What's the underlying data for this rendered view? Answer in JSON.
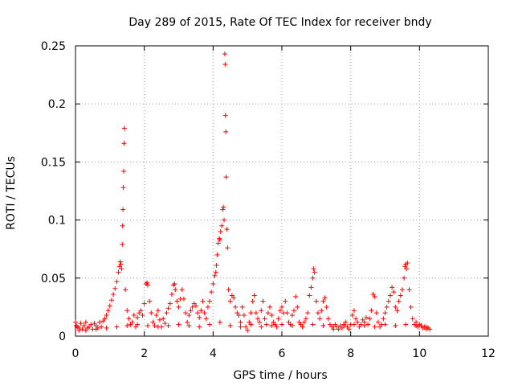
{
  "chart_data": {
    "type": "scatter",
    "title": "Day 289 of 2015, Rate Of TEC Index for receiver bndy",
    "xlabel": "GPS time / hours",
    "ylabel": "ROTI / TECUs",
    "xlim": [
      0,
      12
    ],
    "ylim": [
      0,
      0.25
    ],
    "grid": true,
    "marker": "+",
    "series_color": "#ff0000",
    "x_ticks": [
      0,
      2,
      4,
      6,
      8,
      10,
      12
    ],
    "y_ticks": [
      0,
      0.05,
      0.1,
      0.15,
      0.2,
      0.25
    ],
    "x_tick_labels": [
      "0",
      "2",
      "4",
      "6",
      "8",
      "10",
      "12"
    ],
    "y_tick_labels": [
      "0",
      "0.05",
      "0.1",
      "0.15",
      "0.2",
      "0.25"
    ],
    "series": [
      {
        "name": "ROTI",
        "points": [
          [
            0.0,
            0.012
          ],
          [
            0.02,
            0.009
          ],
          [
            0.05,
            0.008
          ],
          [
            0.1,
            0.007
          ],
          [
            0.15,
            0.011
          ],
          [
            0.2,
            0.006
          ],
          [
            0.25,
            0.009
          ],
          [
            0.3,
            0.012
          ],
          [
            0.35,
            0.007
          ],
          [
            0.4,
            0.008
          ],
          [
            0.45,
            0.01
          ],
          [
            0.5,
            0.006
          ],
          [
            0.55,
            0.011
          ],
          [
            0.6,
            0.009
          ],
          [
            0.65,
            0.007
          ],
          [
            0.7,
            0.012
          ],
          [
            0.75,
            0.008
          ],
          [
            0.8,
            0.013
          ],
          [
            0.85,
            0.015
          ],
          [
            0.9,
            0.018
          ],
          [
            0.95,
            0.022
          ],
          [
            1.0,
            0.026
          ],
          [
            1.05,
            0.031
          ],
          [
            1.1,
            0.036
          ],
          [
            1.15,
            0.041
          ],
          [
            1.2,
            0.047
          ],
          [
            1.25,
            0.055
          ],
          [
            1.28,
            0.06
          ],
          [
            1.3,
            0.064
          ],
          [
            1.32,
            0.062
          ],
          [
            1.34,
            0.058
          ],
          [
            1.36,
            0.079
          ],
          [
            1.37,
            0.095
          ],
          [
            1.38,
            0.109
          ],
          [
            1.39,
            0.128
          ],
          [
            1.4,
            0.142
          ],
          [
            1.41,
            0.166
          ],
          [
            1.42,
            0.179
          ],
          [
            1.45,
            0.04
          ],
          [
            1.5,
            0.022
          ],
          [
            1.55,
            0.015
          ],
          [
            1.6,
            0.01
          ],
          [
            1.65,
            0.012
          ],
          [
            1.7,
            0.018
          ],
          [
            1.75,
            0.008
          ],
          [
            1.8,
            0.016
          ],
          [
            1.85,
            0.02
          ],
          [
            1.9,
            0.022
          ],
          [
            1.95,
            0.018
          ],
          [
            2.0,
            0.028
          ],
          [
            2.05,
            0.045
          ],
          [
            2.08,
            0.046
          ],
          [
            2.1,
            0.044
          ],
          [
            2.15,
            0.03
          ],
          [
            2.2,
            0.02
          ],
          [
            2.25,
            0.012
          ],
          [
            2.3,
            0.009
          ],
          [
            2.35,
            0.018
          ],
          [
            2.4,
            0.022
          ],
          [
            2.45,
            0.014
          ],
          [
            2.5,
            0.008
          ],
          [
            2.55,
            0.015
          ],
          [
            2.6,
            0.011
          ],
          [
            2.65,
            0.02
          ],
          [
            2.7,
            0.024
          ],
          [
            2.75,
            0.028
          ],
          [
            2.8,
            0.036
          ],
          [
            2.85,
            0.044
          ],
          [
            2.88,
            0.045
          ],
          [
            2.9,
            0.04
          ],
          [
            2.95,
            0.03
          ],
          [
            3.0,
            0.025
          ],
          [
            3.05,
            0.032
          ],
          [
            3.1,
            0.04
          ],
          [
            3.15,
            0.032
          ],
          [
            3.2,
            0.02
          ],
          [
            3.25,
            0.012
          ],
          [
            3.3,
            0.018
          ],
          [
            3.35,
            0.022
          ],
          [
            3.4,
            0.025
          ],
          [
            3.45,
            0.028
          ],
          [
            3.5,
            0.026
          ],
          [
            3.55,
            0.02
          ],
          [
            3.6,
            0.016
          ],
          [
            3.65,
            0.022
          ],
          [
            3.7,
            0.03
          ],
          [
            3.75,
            0.02
          ],
          [
            3.8,
            0.015
          ],
          [
            3.85,
            0.025
          ],
          [
            3.9,
            0.03
          ],
          [
            3.95,
            0.038
          ],
          [
            4.0,
            0.045
          ],
          [
            4.05,
            0.052
          ],
          [
            4.08,
            0.055
          ],
          [
            4.1,
            0.061
          ],
          [
            4.12,
            0.07
          ],
          [
            4.15,
            0.08
          ],
          [
            4.18,
            0.084
          ],
          [
            4.2,
            0.083
          ],
          [
            4.22,
            0.09
          ],
          [
            4.25,
            0.095
          ],
          [
            4.28,
            0.109
          ],
          [
            4.3,
            0.111
          ],
          [
            4.32,
            0.1
          ],
          [
            4.34,
            0.243
          ],
          [
            4.35,
            0.234
          ],
          [
            4.36,
            0.19
          ],
          [
            4.37,
            0.176
          ],
          [
            4.38,
            0.137
          ],
          [
            4.4,
            0.092
          ],
          [
            4.42,
            0.076
          ],
          [
            4.45,
            0.04
          ],
          [
            4.5,
            0.03
          ],
          [
            4.55,
            0.035
          ],
          [
            4.6,
            0.033
          ],
          [
            4.65,
            0.025
          ],
          [
            4.7,
            0.02
          ],
          [
            4.75,
            0.018
          ],
          [
            4.8,
            0.012
          ],
          [
            4.85,
            0.025
          ],
          [
            4.9,
            0.018
          ],
          [
            4.95,
            0.008
          ],
          [
            5.0,
            0.005
          ],
          [
            5.05,
            0.012
          ],
          [
            5.1,
            0.02
          ],
          [
            5.15,
            0.03
          ],
          [
            5.2,
            0.035
          ],
          [
            5.25,
            0.02
          ],
          [
            5.3,
            0.015
          ],
          [
            5.35,
            0.012
          ],
          [
            5.4,
            0.022
          ],
          [
            5.45,
            0.03
          ],
          [
            5.5,
            0.015
          ],
          [
            5.55,
            0.01
          ],
          [
            5.6,
            0.02
          ],
          [
            5.65,
            0.025
          ],
          [
            5.7,
            0.018
          ],
          [
            5.75,
            0.012
          ],
          [
            5.8,
            0.01
          ],
          [
            5.85,
            0.008
          ],
          [
            5.9,
            0.015
          ],
          [
            5.95,
            0.022
          ],
          [
            6.0,
            0.025
          ],
          [
            6.05,
            0.02
          ],
          [
            6.1,
            0.03
          ],
          [
            6.15,
            0.02
          ],
          [
            6.2,
            0.012
          ],
          [
            6.25,
            0.01
          ],
          [
            6.3,
            0.018
          ],
          [
            6.35,
            0.022
          ],
          [
            6.4,
            0.034
          ],
          [
            6.45,
            0.025
          ],
          [
            6.5,
            0.012
          ],
          [
            6.55,
            0.01
          ],
          [
            6.6,
            0.008
          ],
          [
            6.65,
            0.012
          ],
          [
            6.7,
            0.015
          ],
          [
            6.75,
            0.02
          ],
          [
            6.8,
            0.035
          ],
          [
            6.85,
            0.042
          ],
          [
            6.9,
            0.05
          ],
          [
            6.92,
            0.058
          ],
          [
            6.95,
            0.055
          ],
          [
            7.0,
            0.03
          ],
          [
            7.05,
            0.02
          ],
          [
            7.1,
            0.015
          ],
          [
            7.15,
            0.022
          ],
          [
            7.2,
            0.03
          ],
          [
            7.25,
            0.033
          ],
          [
            7.3,
            0.025
          ],
          [
            7.35,
            0.015
          ],
          [
            7.4,
            0.01
          ],
          [
            7.45,
            0.008
          ],
          [
            7.5,
            0.006
          ],
          [
            7.55,
            0.01
          ],
          [
            7.6,
            0.008
          ],
          [
            7.65,
            0.006
          ],
          [
            7.7,
            0.009
          ],
          [
            7.75,
            0.007
          ],
          [
            7.8,
            0.01
          ],
          [
            7.85,
            0.012
          ],
          [
            7.9,
            0.008
          ],
          [
            7.95,
            0.006
          ],
          [
            8.0,
            0.01
          ],
          [
            8.05,
            0.018
          ],
          [
            8.1,
            0.022
          ],
          [
            8.15,
            0.015
          ],
          [
            8.2,
            0.012
          ],
          [
            8.25,
            0.008
          ],
          [
            8.3,
            0.01
          ],
          [
            8.35,
            0.014
          ],
          [
            8.4,
            0.012
          ],
          [
            8.45,
            0.016
          ],
          [
            8.5,
            0.01
          ],
          [
            8.55,
            0.015
          ],
          [
            8.6,
            0.022
          ],
          [
            8.65,
            0.036
          ],
          [
            8.7,
            0.034
          ],
          [
            8.75,
            0.02
          ],
          [
            8.8,
            0.012
          ],
          [
            8.85,
            0.008
          ],
          [
            8.9,
            0.01
          ],
          [
            8.95,
            0.015
          ],
          [
            9.0,
            0.02
          ],
          [
            9.05,
            0.025
          ],
          [
            9.1,
            0.03
          ],
          [
            9.15,
            0.035
          ],
          [
            9.2,
            0.042
          ],
          [
            9.25,
            0.038
          ],
          [
            9.3,
            0.025
          ],
          [
            9.35,
            0.022
          ],
          [
            9.4,
            0.03
          ],
          [
            9.45,
            0.035
          ],
          [
            9.5,
            0.04
          ],
          [
            9.55,
            0.05
          ],
          [
            9.58,
            0.06
          ],
          [
            9.6,
            0.062
          ],
          [
            9.62,
            0.058
          ],
          [
            9.65,
            0.063
          ],
          [
            9.7,
            0.04
          ],
          [
            9.75,
            0.025
          ],
          [
            9.8,
            0.015
          ],
          [
            9.85,
            0.01
          ],
          [
            9.9,
            0.012
          ],
          [
            9.95,
            0.008
          ],
          [
            10.0,
            0.01
          ],
          [
            10.05,
            0.009
          ],
          [
            10.1,
            0.007
          ],
          [
            10.15,
            0.008
          ],
          [
            10.2,
            0.006
          ],
          [
            10.25,
            0.007
          ],
          [
            10.3,
            0.006
          ],
          [
            0.1,
            0.005
          ],
          [
            0.3,
            0.005
          ],
          [
            0.6,
            0.006
          ],
          [
            0.9,
            0.007
          ],
          [
            1.2,
            0.008
          ],
          [
            1.5,
            0.009
          ],
          [
            1.8,
            0.01
          ],
          [
            2.1,
            0.009
          ],
          [
            2.4,
            0.008
          ],
          [
            2.7,
            0.009
          ],
          [
            3.0,
            0.01
          ],
          [
            3.3,
            0.009
          ],
          [
            3.6,
            0.008
          ],
          [
            3.9,
            0.01
          ],
          [
            4.2,
            0.012
          ],
          [
            4.5,
            0.009
          ],
          [
            4.8,
            0.008
          ],
          [
            5.1,
            0.01
          ],
          [
            5.4,
            0.008
          ],
          [
            5.7,
            0.009
          ],
          [
            6.0,
            0.01
          ],
          [
            6.3,
            0.009
          ],
          [
            6.6,
            0.008
          ],
          [
            6.9,
            0.01
          ],
          [
            7.2,
            0.009
          ],
          [
            7.5,
            0.008
          ],
          [
            7.8,
            0.009
          ],
          [
            8.1,
            0.01
          ],
          [
            8.4,
            0.009
          ],
          [
            8.7,
            0.008
          ],
          [
            9.0,
            0.01
          ],
          [
            9.3,
            0.009
          ],
          [
            9.6,
            0.01
          ],
          [
            9.9,
            0.009
          ],
          [
            10.2,
            0.008
          ]
        ]
      }
    ]
  }
}
